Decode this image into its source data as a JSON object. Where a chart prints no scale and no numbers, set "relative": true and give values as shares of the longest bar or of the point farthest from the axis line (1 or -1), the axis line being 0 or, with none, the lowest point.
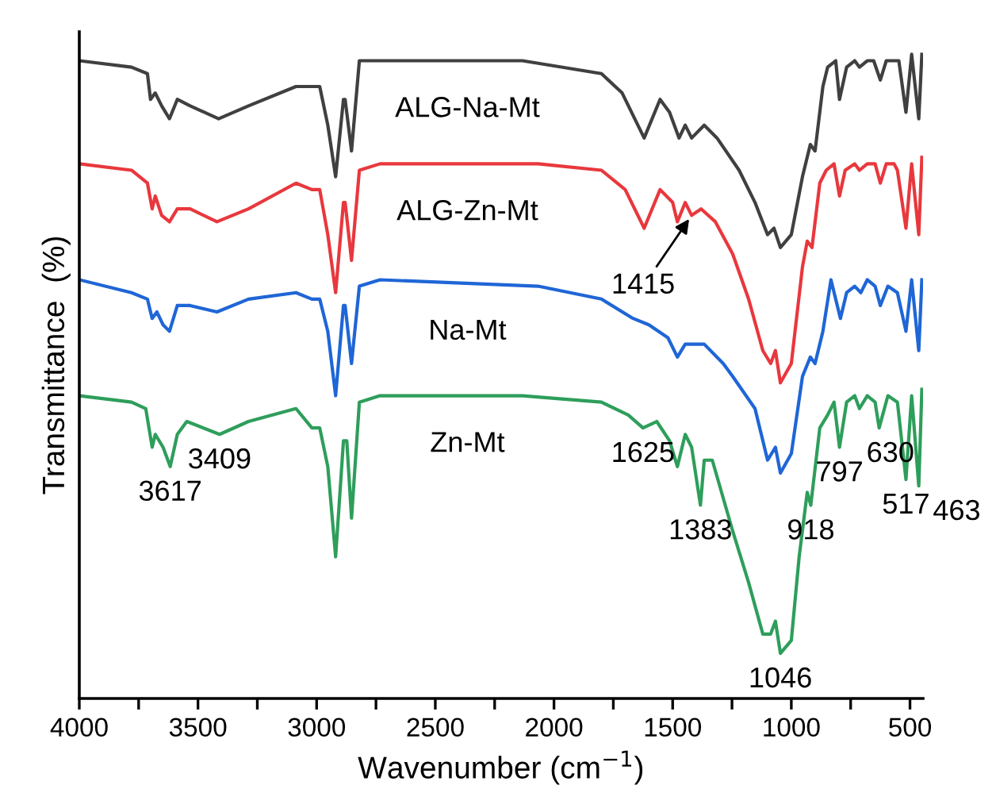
{
  "chart_data": {
    "type": "line",
    "relative": true,
    "xlabel": "Wavenumber (cm$^{−1}$)",
    "ylabel": "Transmittance  (%)",
    "xlim": [
      4000,
      445
    ],
    "xticks": [
      4000,
      {
        "value": 3750,
        "label": null
      },
      3500,
      {
        "value": 3250,
        "label": null
      },
      3000,
      {
        "value": 2750,
        "label": null
      },
      2500,
      {
        "value": 2250,
        "label": null
      },
      2000,
      {
        "value": 1750,
        "label": null
      },
      1500,
      {
        "value": 1250,
        "label": null
      },
      1000,
      {
        "value": 750,
        "label": null
      },
      500
    ],
    "grid": false,
    "legend": false,
    "marker": "none",
    "line_style": "solid",
    "series": [
      {
        "name": "ALG-Na-Mt",
        "color": "#404040",
        "x": [
          4000,
          3780,
          3713,
          3700,
          3680,
          3653,
          3620,
          3587,
          3533,
          3413,
          3287,
          3087,
          3020,
          2987,
          2953,
          2920,
          2887,
          2880,
          2853,
          2820,
          2733,
          2133,
          1800,
          1713,
          1620,
          1553,
          1513,
          1473,
          1447,
          1420,
          1367,
          1313,
          1220,
          1153,
          1100,
          1073,
          1046,
          1000,
          953,
          920,
          900,
          867,
          847,
          813,
          797,
          767,
          733,
          713,
          680,
          653,
          625,
          600,
          567,
          547,
          517,
          493,
          463,
          450
        ],
        "values": [
          0.99,
          0.98,
          0.97,
          0.93,
          0.94,
          0.92,
          0.9,
          0.93,
          0.92,
          0.9,
          0.92,
          0.95,
          0.95,
          0.95,
          0.89,
          0.81,
          0.93,
          0.93,
          0.85,
          0.99,
          0.99,
          0.99,
          0.97,
          0.94,
          0.87,
          0.93,
          0.91,
          0.87,
          0.89,
          0.87,
          0.89,
          0.87,
          0.82,
          0.77,
          0.72,
          0.73,
          0.7,
          0.72,
          0.81,
          0.86,
          0.85,
          0.95,
          0.98,
          0.99,
          0.93,
          0.98,
          0.99,
          0.98,
          0.99,
          0.99,
          0.96,
          0.99,
          0.99,
          0.99,
          0.91,
          1.0,
          0.9,
          1.0
        ]
      },
      {
        "name": "ALG-Zn-Mt",
        "color": "#e8383d",
        "x": [
          4000,
          3780,
          3713,
          3693,
          3680,
          3653,
          3620,
          3587,
          3533,
          3420,
          3287,
          3087,
          3020,
          2987,
          2953,
          2920,
          2887,
          2880,
          2853,
          2820,
          2733,
          2067,
          1800,
          1700,
          1620,
          1553,
          1500,
          1480,
          1447,
          1420,
          1380,
          1320,
          1247,
          1180,
          1120,
          1087,
          1067,
          1046,
          1000,
          953,
          933,
          913,
          880,
          853,
          820,
          797,
          773,
          733,
          713,
          680,
          647,
          625,
          600,
          567,
          553,
          517,
          493,
          463,
          450
        ],
        "values": [
          0.83,
          0.82,
          0.8,
          0.76,
          0.78,
          0.75,
          0.74,
          0.76,
          0.76,
          0.74,
          0.76,
          0.8,
          0.79,
          0.79,
          0.72,
          0.63,
          0.77,
          0.77,
          0.68,
          0.82,
          0.83,
          0.83,
          0.82,
          0.79,
          0.73,
          0.79,
          0.77,
          0.74,
          0.77,
          0.75,
          0.76,
          0.74,
          0.69,
          0.62,
          0.54,
          0.52,
          0.54,
          0.49,
          0.52,
          0.67,
          0.71,
          0.7,
          0.8,
          0.82,
          0.83,
          0.78,
          0.82,
          0.83,
          0.82,
          0.83,
          0.83,
          0.8,
          0.83,
          0.83,
          0.82,
          0.73,
          0.83,
          0.72,
          0.84
        ]
      },
      {
        "name": "Na-Mt",
        "color": "#1f66d6",
        "x": [
          4000,
          3780,
          3713,
          3693,
          3673,
          3647,
          3620,
          3587,
          3533,
          3420,
          3287,
          3087,
          3020,
          2987,
          2953,
          2920,
          2887,
          2880,
          2853,
          2820,
          2733,
          2067,
          1800,
          1667,
          1600,
          1520,
          1480,
          1447,
          1367,
          1287,
          1247,
          1153,
          1100,
          1067,
          1046,
          1000,
          953,
          920,
          900,
          867,
          833,
          793,
          767,
          733,
          707,
          680,
          647,
          625,
          593,
          553,
          517,
          493,
          463,
          450
        ],
        "values": [
          0.65,
          0.63,
          0.62,
          0.59,
          0.6,
          0.58,
          0.57,
          0.61,
          0.61,
          0.6,
          0.62,
          0.63,
          0.62,
          0.62,
          0.57,
          0.47,
          0.61,
          0.61,
          0.52,
          0.64,
          0.65,
          0.64,
          0.62,
          0.59,
          0.58,
          0.56,
          0.53,
          0.55,
          0.55,
          0.52,
          0.5,
          0.45,
          0.37,
          0.39,
          0.35,
          0.38,
          0.5,
          0.53,
          0.52,
          0.57,
          0.65,
          0.59,
          0.63,
          0.64,
          0.63,
          0.65,
          0.64,
          0.61,
          0.64,
          0.63,
          0.57,
          0.65,
          0.54,
          0.65
        ]
      },
      {
        "name": "Zn-Mt",
        "color": "#2e9e5b",
        "x": [
          4000,
          3780,
          3720,
          3693,
          3680,
          3647,
          3617,
          3587,
          3547,
          3409,
          3287,
          3087,
          3020,
          2987,
          2953,
          2920,
          2887,
          2873,
          2853,
          2820,
          2733,
          2133,
          1800,
          1687,
          1625,
          1567,
          1513,
          1480,
          1447,
          1420,
          1383,
          1367,
          1333,
          1247,
          1180,
          1120,
          1087,
          1067,
          1046,
          1000,
          967,
          933,
          918,
          880,
          847,
          820,
          797,
          767,
          733,
          713,
          680,
          647,
          630,
          593,
          553,
          517,
          493,
          463,
          450
        ],
        "values": [
          0.47,
          0.46,
          0.45,
          0.39,
          0.41,
          0.39,
          0.36,
          0.41,
          0.43,
          0.41,
          0.43,
          0.45,
          0.42,
          0.42,
          0.36,
          0.22,
          0.4,
          0.4,
          0.28,
          0.46,
          0.47,
          0.47,
          0.46,
          0.44,
          0.42,
          0.43,
          0.4,
          0.36,
          0.41,
          0.39,
          0.3,
          0.37,
          0.37,
          0.26,
          0.18,
          0.1,
          0.1,
          0.12,
          0.07,
          0.09,
          0.22,
          0.32,
          0.3,
          0.42,
          0.44,
          0.46,
          0.39,
          0.46,
          0.47,
          0.45,
          0.47,
          0.46,
          0.42,
          0.47,
          0.46,
          0.34,
          0.47,
          0.33,
          0.48
        ]
      }
    ],
    "annotations": [
      {
        "text": "3617",
        "x": 3617,
        "y": 0.36
      },
      {
        "text": "3409",
        "x": 3409,
        "y": 0.41
      },
      {
        "text": "1415",
        "x": 1420,
        "y": 0.75
      },
      {
        "text": "1625",
        "x": 1625,
        "y": 0.42
      },
      {
        "text": "1383",
        "x": 1383,
        "y": 0.3
      },
      {
        "text": "1046",
        "x": 1046,
        "y": 0.07
      },
      {
        "text": "918",
        "x": 918,
        "y": 0.3
      },
      {
        "text": "797",
        "x": 797,
        "y": 0.39
      },
      {
        "text": "630",
        "x": 630,
        "y": 0.42
      },
      {
        "text": "517",
        "x": 517,
        "y": 0.34
      },
      {
        "text": "463",
        "x": 463,
        "y": 0.33
      }
    ]
  }
}
